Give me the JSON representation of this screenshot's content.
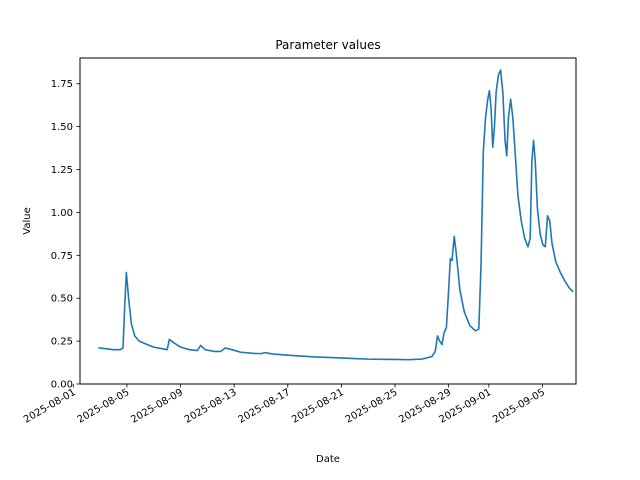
{
  "chart_data": {
    "type": "line",
    "title": "Parameter values",
    "xlabel": "Date",
    "ylabel": "Value",
    "xlim": [
      "2025-08-01T12:00",
      "2025-09-07T12:00"
    ],
    "ylim": [
      0.0,
      1.9
    ],
    "grid": false,
    "legend": "none",
    "x_ticks": [
      "2025-08-01",
      "2025-08-05",
      "2025-08-09",
      "2025-08-13",
      "2025-08-17",
      "2025-08-21",
      "2025-08-25",
      "2025-08-29",
      "2025-09-01",
      "2025-09-05"
    ],
    "y_ticks": [
      "0.00",
      "0.25",
      "0.50",
      "0.75",
      "1.00",
      "1.25",
      "1.50",
      "1.75"
    ],
    "series": [
      {
        "color": "#1f77b4",
        "points": [
          [
            "2025-08-02T22:00",
            0.21
          ],
          [
            "2025-08-03T12:00",
            0.205
          ],
          [
            "2025-08-04T00:00",
            0.2
          ],
          [
            "2025-08-04T12:00",
            0.2
          ],
          [
            "2025-08-04T17:00",
            0.21
          ],
          [
            "2025-08-04T20:00",
            0.45
          ],
          [
            "2025-08-04T23:00",
            0.65
          ],
          [
            "2025-08-05T03:00",
            0.5
          ],
          [
            "2025-08-05T08:00",
            0.35
          ],
          [
            "2025-08-05T14:00",
            0.28
          ],
          [
            "2025-08-05T22:00",
            0.25
          ],
          [
            "2025-08-06T12:00",
            0.23
          ],
          [
            "2025-08-07T00:00",
            0.215
          ],
          [
            "2025-08-07T16:00",
            0.205
          ],
          [
            "2025-08-08T00:00",
            0.2
          ],
          [
            "2025-08-08T04:00",
            0.26
          ],
          [
            "2025-08-08T12:00",
            0.24
          ],
          [
            "2025-08-09T00:00",
            0.215
          ],
          [
            "2025-08-09T16:00",
            0.2
          ],
          [
            "2025-08-10T06:00",
            0.195
          ],
          [
            "2025-08-10T12:00",
            0.225
          ],
          [
            "2025-08-10T20:00",
            0.2
          ],
          [
            "2025-08-11T12:00",
            0.19
          ],
          [
            "2025-08-12T00:00",
            0.19
          ],
          [
            "2025-08-12T08:00",
            0.21
          ],
          [
            "2025-08-12T20:00",
            0.2
          ],
          [
            "2025-08-13T12:00",
            0.185
          ],
          [
            "2025-08-14T12:00",
            0.178
          ],
          [
            "2025-08-15T00:00",
            0.177
          ],
          [
            "2025-08-15T08:00",
            0.183
          ],
          [
            "2025-08-15T20:00",
            0.175
          ],
          [
            "2025-08-17T00:00",
            0.168
          ],
          [
            "2025-08-18T00:00",
            0.163
          ],
          [
            "2025-08-19T00:00",
            0.158
          ],
          [
            "2025-08-20T00:00",
            0.155
          ],
          [
            "2025-08-21T00:00",
            0.152
          ],
          [
            "2025-08-22T00:00",
            0.148
          ],
          [
            "2025-08-23T00:00",
            0.145
          ],
          [
            "2025-08-24T00:00",
            0.144
          ],
          [
            "2025-08-25T00:00",
            0.143
          ],
          [
            "2025-08-26T00:00",
            0.142
          ],
          [
            "2025-08-27T00:00",
            0.145
          ],
          [
            "2025-08-27T18:00",
            0.16
          ],
          [
            "2025-08-28T00:00",
            0.19
          ],
          [
            "2025-08-28T04:00",
            0.28
          ],
          [
            "2025-08-28T08:00",
            0.25
          ],
          [
            "2025-08-28T12:00",
            0.23
          ],
          [
            "2025-08-28T16:00",
            0.3
          ],
          [
            "2025-08-28T20:00",
            0.33
          ],
          [
            "2025-08-29T00:00",
            0.55
          ],
          [
            "2025-08-29T03:00",
            0.73
          ],
          [
            "2025-08-29T06:00",
            0.72
          ],
          [
            "2025-08-29T10:00",
            0.86
          ],
          [
            "2025-08-29T14:00",
            0.75
          ],
          [
            "2025-08-29T20:00",
            0.55
          ],
          [
            "2025-08-30T04:00",
            0.42
          ],
          [
            "2025-08-30T14:00",
            0.34
          ],
          [
            "2025-08-31T00:00",
            0.31
          ],
          [
            "2025-08-31T06:00",
            0.32
          ],
          [
            "2025-08-31T10:00",
            0.7
          ],
          [
            "2025-08-31T14:00",
            1.35
          ],
          [
            "2025-08-31T18:00",
            1.55
          ],
          [
            "2025-08-31T22:00",
            1.66
          ],
          [
            "2025-09-01T01:00",
            1.71
          ],
          [
            "2025-09-01T04:00",
            1.6
          ],
          [
            "2025-09-01T07:00",
            1.38
          ],
          [
            "2025-09-01T10:00",
            1.5
          ],
          [
            "2025-09-01T13:00",
            1.7
          ],
          [
            "2025-09-01T17:00",
            1.8
          ],
          [
            "2025-09-01T21:00",
            1.83
          ],
          [
            "2025-09-02T01:00",
            1.7
          ],
          [
            "2025-09-02T05:00",
            1.42
          ],
          [
            "2025-09-02T08:00",
            1.33
          ],
          [
            "2025-09-02T11:00",
            1.55
          ],
          [
            "2025-09-02T15:00",
            1.66
          ],
          [
            "2025-09-02T19:00",
            1.55
          ],
          [
            "2025-09-02T23:00",
            1.35
          ],
          [
            "2025-09-03T04:00",
            1.1
          ],
          [
            "2025-09-03T10:00",
            0.95
          ],
          [
            "2025-09-03T16:00",
            0.85
          ],
          [
            "2025-09-03T22:00",
            0.8
          ],
          [
            "2025-09-04T02:00",
            0.85
          ],
          [
            "2025-09-04T05:00",
            1.3
          ],
          [
            "2025-09-04T08:00",
            1.42
          ],
          [
            "2025-09-04T11:00",
            1.3
          ],
          [
            "2025-09-04T15:00",
            1.02
          ],
          [
            "2025-09-04T20:00",
            0.87
          ],
          [
            "2025-09-05T01:00",
            0.81
          ],
          [
            "2025-09-05T05:00",
            0.8
          ],
          [
            "2025-09-05T09:00",
            0.98
          ],
          [
            "2025-09-05T13:00",
            0.95
          ],
          [
            "2025-09-05T17:00",
            0.82
          ],
          [
            "2025-09-06T00:00",
            0.71
          ],
          [
            "2025-09-06T08:00",
            0.65
          ],
          [
            "2025-09-06T16:00",
            0.6
          ],
          [
            "2025-09-07T00:00",
            0.56
          ],
          [
            "2025-09-07T06:00",
            0.54
          ]
        ]
      }
    ]
  }
}
